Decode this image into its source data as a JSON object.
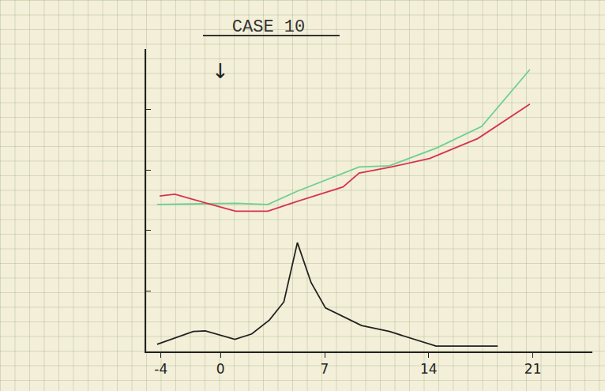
{
  "chart_data": {
    "type": "line",
    "title": "CASE 10",
    "xlim": [
      -5,
      25
    ],
    "xticks": [
      -4,
      0,
      7,
      14,
      21
    ],
    "ylim": [
      0,
      5
    ],
    "yticks": [
      0,
      1,
      2,
      3,
      4,
      5
    ],
    "tick_labels": "x",
    "grid": false,
    "annotations": [
      {
        "text": "↓",
        "x": 0
      }
    ],
    "series": [
      {
        "color": "#6fcf8f",
        "x": [
          -4.26,
          1.02,
          3.18,
          5.17,
          9.32,
          11.37,
          14.49,
          17.56,
          20.8
        ],
        "values": [
          2.43,
          2.45,
          2.43,
          2.65,
          3.05,
          3.07,
          3.36,
          3.72,
          4.66
        ]
      },
      {
        "color": "#d8324e",
        "x": [
          -4.09,
          -3.07,
          -0.92,
          1.02,
          3.18,
          5.01,
          8.24,
          9.32,
          11.48,
          14.06,
          17.3,
          20.8
        ],
        "values": [
          2.57,
          2.6,
          2.45,
          2.32,
          2.32,
          2.47,
          2.72,
          2.95,
          3.05,
          3.19,
          3.52,
          4.09
        ]
      },
      {
        "color": "#222222",
        "x": [
          -4.26,
          -1.83,
          -1.02,
          0.97,
          2.1,
          3.29,
          4.26,
          5.17,
          6.09,
          7.06,
          9.48,
          11.37,
          14.49,
          18.64
        ],
        "values": [
          0.12,
          0.33,
          0.34,
          0.2,
          0.29,
          0.52,
          0.82,
          1.8,
          1.14,
          0.72,
          0.43,
          0.33,
          0.09,
          0.09
        ]
      }
    ]
  }
}
